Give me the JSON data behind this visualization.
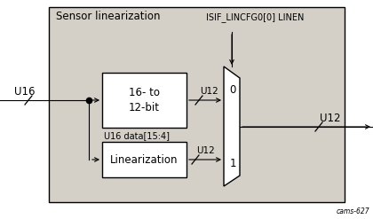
{
  "bg_color": "#d4d0c8",
  "white": "#ffffff",
  "black": "#000000",
  "fig_bg": "#ffffff",
  "title_text": "Sensor linearization",
  "isif_label": "ISIF_LINCFG0[0] LINEN",
  "u16_in_label": "U16",
  "u16_out_label": "U12",
  "u16_data_label": "U16 data[15:4]",
  "box1_label": "16- to\n12-bit",
  "box2_label": "Linearization",
  "mux_label_0": "0",
  "mux_label_1": "1",
  "u12_label1": "U12",
  "u12_label2": "U12",
  "cam_label": "cams-627",
  "font_size": 8.5
}
